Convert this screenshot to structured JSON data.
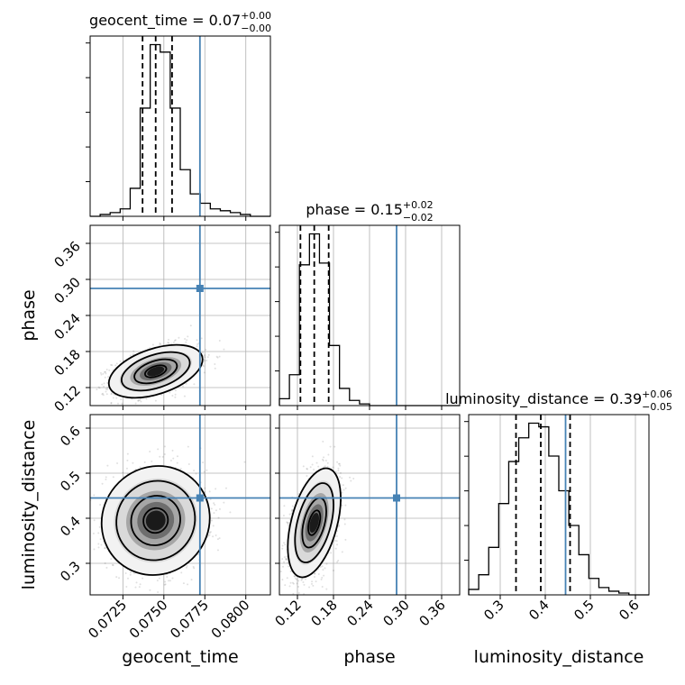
{
  "chart_data": {
    "type": "corner",
    "parameters": [
      {
        "name": "geocent_time",
        "label": "geocent_time",
        "range": [
          0.0705,
          0.0815
        ],
        "ticks": [
          "0.0725",
          "0.0750",
          "0.0775",
          "0.0800"
        ],
        "tick_values": [
          0.0725,
          0.075,
          0.0775,
          0.08
        ],
        "truth": 0.0772,
        "quantiles": [
          0.0737,
          0.0745,
          0.0755
        ],
        "title_main": "geocent_time = 0.07",
        "title_plus": "+0.00",
        "title_minus": "−0.00",
        "hist_counts": [
          0,
          1,
          2,
          4,
          15,
          58,
          92,
          88,
          58,
          25,
          12,
          7,
          4,
          3,
          2,
          1,
          0,
          0
        ]
      },
      {
        "name": "phase",
        "label": "phase",
        "range": [
          0.09,
          0.39
        ],
        "ticks": [
          "0.12",
          "0.18",
          "0.24",
          "0.30",
          "0.36"
        ],
        "tick_values": [
          0.12,
          0.18,
          0.24,
          0.3,
          0.36
        ],
        "truth": 0.285,
        "quantiles": [
          0.125,
          0.148,
          0.172
        ],
        "title_main": "phase = 0.15",
        "title_plus": "+0.02",
        "title_minus": "−0.02",
        "hist_counts": [
          4,
          18,
          82,
          100,
          83,
          35,
          10,
          3,
          1,
          0,
          0,
          0,
          0,
          0,
          0,
          0,
          0,
          0
        ]
      },
      {
        "name": "luminosity_distance",
        "label": "luminosity_distance",
        "range": [
          0.23,
          0.63
        ],
        "ticks": [
          "0.3",
          "0.4",
          "0.5",
          "0.6"
        ],
        "tick_values": [
          0.3,
          0.4,
          0.5,
          0.6
        ],
        "truth": 0.445,
        "quantiles": [
          0.335,
          0.39,
          0.455
        ],
        "title_main": "luminosity_distance = 0.39",
        "title_plus": "+0.06",
        "title_minus": "−0.05",
        "hist_counts": [
          3,
          11,
          26,
          50,
          73,
          86,
          94,
          92,
          76,
          57,
          38,
          22,
          9,
          4,
          2,
          1,
          0,
          0
        ]
      }
    ],
    "pair_panels": [
      {
        "x": "geocent_time",
        "y": "phase",
        "center": [
          0.0745,
          0.147
        ],
        "spread": [
          0.0013,
          0.02
        ],
        "correlation": 0.45
      },
      {
        "x": "geocent_time",
        "y": "luminosity_distance",
        "center": [
          0.0745,
          0.395
        ],
        "spread": [
          0.0015,
          0.055
        ],
        "correlation": 0.05
      },
      {
        "x": "phase",
        "y": "luminosity_distance",
        "center": [
          0.148,
          0.39
        ],
        "spread": [
          0.02,
          0.055
        ],
        "correlation": 0.45
      }
    ],
    "grid": true,
    "truth_color": "#4682b4",
    "contour_color": "#000000"
  }
}
